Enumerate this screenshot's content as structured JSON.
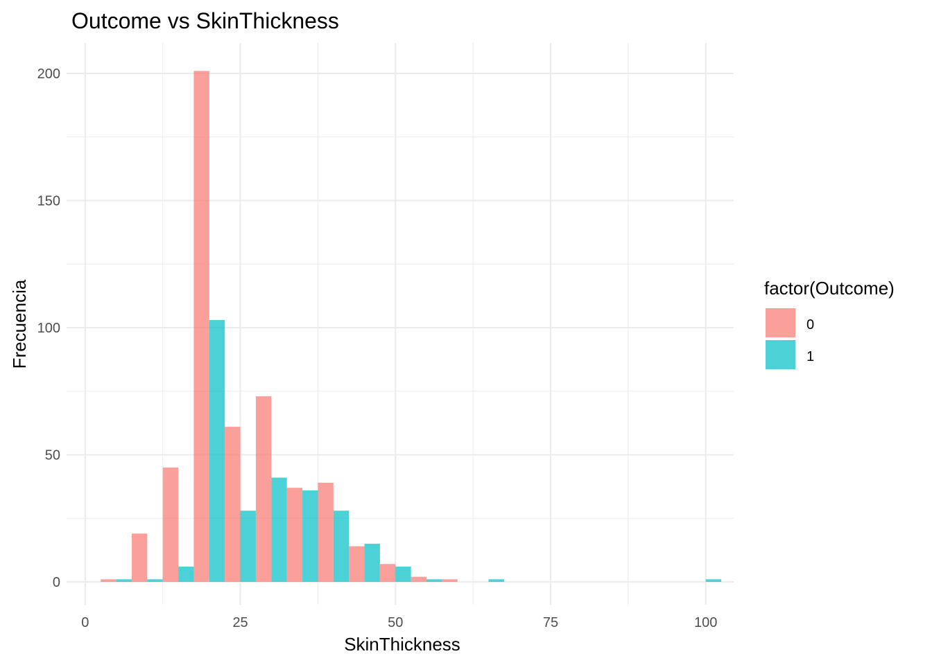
{
  "chart_data": {
    "type": "bar",
    "title": "Outcome vs SkinThickness",
    "xlabel": "SkinThickness",
    "ylabel": "Frecuencia",
    "xlim": [
      -3,
      104.5
    ],
    "ylim": [
      -9,
      212
    ],
    "x_ticks": [
      0,
      25,
      50,
      75,
      100
    ],
    "y_ticks": [
      0,
      50,
      100,
      150,
      200
    ],
    "grid": true,
    "legend": {
      "title": "factor(Outcome)",
      "position": "right",
      "entries": [
        {
          "label": "0",
          "color": "#F8766D"
        },
        {
          "label": "1",
          "color": "#00BFC4"
        }
      ]
    },
    "bin_centers": [
      5,
      10,
      15,
      20,
      25,
      30,
      35,
      40,
      45,
      50,
      55,
      60,
      65,
      70,
      75,
      80,
      85,
      90,
      95,
      100
    ],
    "bin_width": 5,
    "series": [
      {
        "name": "0",
        "color": "#F8766D",
        "values": [
          1,
          19,
          45,
          201,
          61,
          73,
          37,
          39,
          14,
          7,
          2,
          1,
          0,
          0,
          0,
          0,
          0,
          0,
          0,
          0
        ]
      },
      {
        "name": "1",
        "color": "#00BFC4",
        "values": [
          1,
          1,
          6,
          103,
          28,
          41,
          36,
          28,
          15,
          6,
          1,
          0,
          1,
          0,
          0,
          0,
          0,
          0,
          0,
          1
        ]
      }
    ]
  }
}
